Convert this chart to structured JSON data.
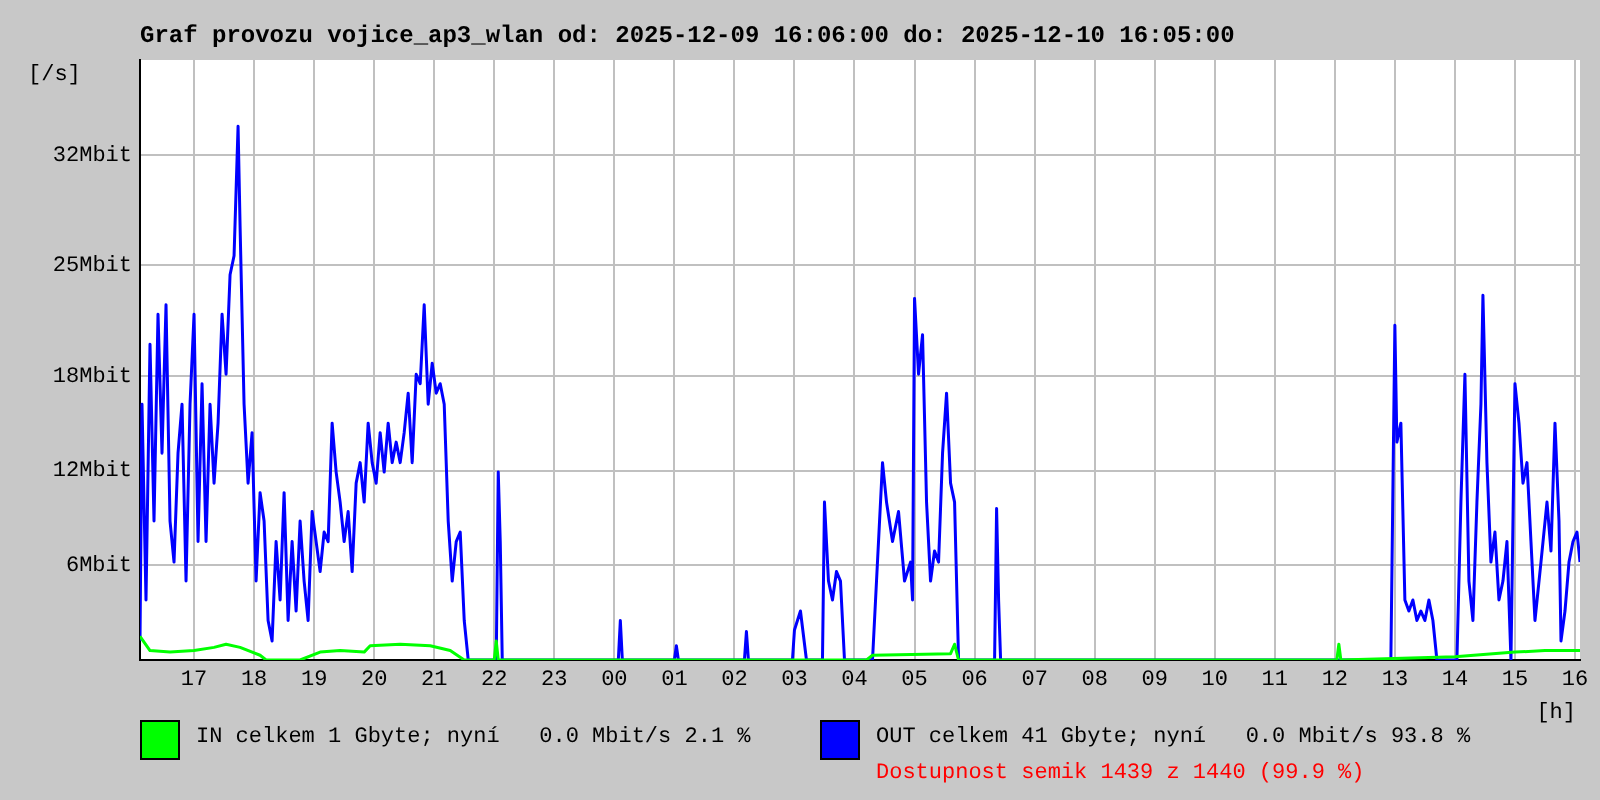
{
  "chart_data": {
    "type": "line",
    "title": "Graf provozu vojice_ap3_wlan od: 2025-12-09 16:06:00 do: 2025-12-10 16:05:00",
    "xlabel": "[h]",
    "ylabel": "[/s]",
    "xlim": [
      "2025-12-09T16:06",
      "2025-12-10T16:05"
    ],
    "xticks": [
      {
        "value": "2025-12-09T17:00",
        "label": "17"
      },
      {
        "value": "2025-12-09T18:00",
        "label": "18"
      },
      {
        "value": "2025-12-09T19:00",
        "label": "19"
      },
      {
        "value": "2025-12-09T20:00",
        "label": "20"
      },
      {
        "value": "2025-12-09T21:00",
        "label": "21"
      },
      {
        "value": "2025-12-09T22:00",
        "label": "22"
      },
      {
        "value": "2025-12-09T23:00",
        "label": "23"
      },
      {
        "value": "2025-12-10T00:00",
        "label": "00"
      },
      {
        "value": "2025-12-10T01:00",
        "label": "01"
      },
      {
        "value": "2025-12-10T02:00",
        "label": "02"
      },
      {
        "value": "2025-12-10T03:00",
        "label": "03"
      },
      {
        "value": "2025-12-10T04:00",
        "label": "04"
      },
      {
        "value": "2025-12-10T05:00",
        "label": "05"
      },
      {
        "value": "2025-12-10T06:00",
        "label": "06"
      },
      {
        "value": "2025-12-10T07:00",
        "label": "07"
      },
      {
        "value": "2025-12-10T08:00",
        "label": "08"
      },
      {
        "value": "2025-12-10T09:00",
        "label": "09"
      },
      {
        "value": "2025-12-10T10:00",
        "label": "10"
      },
      {
        "value": "2025-12-10T11:00",
        "label": "11"
      },
      {
        "value": "2025-12-10T12:00",
        "label": "12"
      },
      {
        "value": "2025-12-10T13:00",
        "label": "13"
      },
      {
        "value": "2025-12-10T14:00",
        "label": "14"
      },
      {
        "value": "2025-12-10T15:00",
        "label": "15"
      },
      {
        "value": "2025-12-10T16:00",
        "label": "16"
      }
    ],
    "ylim": [
      0,
      38
    ],
    "yticks": [
      {
        "value": 6,
        "label": "6Mbit"
      },
      {
        "value": 12,
        "label": "12Mbit"
      },
      {
        "value": 18,
        "label": "18Mbit"
      },
      {
        "value": 25,
        "label": "25Mbit"
      },
      {
        "value": 32,
        "label": "32Mbit"
      }
    ],
    "grid": true,
    "legend": "bottom",
    "series": [
      {
        "name": "IN celkem 1 Gbyte; nyní   0.0 Mbit/s 2.1 %",
        "color": "#00ff00",
        "x": [
          "2025-12-09T16:06",
          "2025-12-09T16:16",
          "2025-12-09T16:36",
          "2025-12-09T17:00",
          "2025-12-09T17:20",
          "2025-12-09T17:32",
          "2025-12-09T17:46",
          "2025-12-09T18:06",
          "2025-12-09T18:12",
          "2025-12-09T18:46",
          "2025-12-09T19:06",
          "2025-12-09T19:26",
          "2025-12-09T19:50",
          "2025-12-09T19:56",
          "2025-12-09T20:26",
          "2025-12-09T20:56",
          "2025-12-09T21:16",
          "2025-12-09T21:30",
          "2025-12-09T22:00",
          "2025-12-09T22:02",
          "2025-12-09T22:04",
          "2025-12-10T04:12",
          "2025-12-10T04:18",
          "2025-12-10T05:36",
          "2025-12-10T05:40",
          "2025-12-10T05:44",
          "2025-12-10T12:02",
          "2025-12-10T12:04",
          "2025-12-10T12:06",
          "2025-12-10T14:00",
          "2025-12-10T15:00",
          "2025-12-10T15:30",
          "2025-12-10T16:05"
        ],
        "values": [
          1.5,
          0.6,
          0.5,
          0.6,
          0.8,
          1,
          0.8,
          0.3,
          0,
          0,
          0.5,
          0.6,
          0.5,
          0.9,
          1,
          0.9,
          0.6,
          0,
          0,
          1.2,
          0,
          0,
          0.3,
          0.4,
          1,
          0,
          0,
          1,
          0,
          0.2,
          0.5,
          0.6,
          0.6
        ]
      },
      {
        "name": "OUT celkem 41 Gbyte; nyní   0.0 Mbit/s 93.8 %",
        "color": "#0000ff",
        "x": [
          "2025-12-09T16:06",
          "2025-12-09T16:08",
          "2025-12-09T16:12",
          "2025-12-09T16:16",
          "2025-12-09T16:20",
          "2025-12-09T16:24",
          "2025-12-09T16:28",
          "2025-12-09T16:32",
          "2025-12-09T16:36",
          "2025-12-09T16:40",
          "2025-12-09T16:44",
          "2025-12-09T16:48",
          "2025-12-09T16:52",
          "2025-12-09T16:56",
          "2025-12-09T17:00",
          "2025-12-09T17:04",
          "2025-12-09T17:08",
          "2025-12-09T17:12",
          "2025-12-09T17:16",
          "2025-12-09T17:20",
          "2025-12-09T17:24",
          "2025-12-09T17:28",
          "2025-12-09T17:32",
          "2025-12-09T17:36",
          "2025-12-09T17:40",
          "2025-12-09T17:44",
          "2025-12-09T17:46",
          "2025-12-09T17:50",
          "2025-12-09T17:54",
          "2025-12-09T17:58",
          "2025-12-09T18:02",
          "2025-12-09T18:06",
          "2025-12-09T18:10",
          "2025-12-09T18:14",
          "2025-12-09T18:18",
          "2025-12-09T18:22",
          "2025-12-09T18:26",
          "2025-12-09T18:30",
          "2025-12-09T18:34",
          "2025-12-09T18:38",
          "2025-12-09T18:42",
          "2025-12-09T18:46",
          "2025-12-09T18:50",
          "2025-12-09T18:54",
          "2025-12-09T18:58",
          "2025-12-09T19:02",
          "2025-12-09T19:06",
          "2025-12-09T19:10",
          "2025-12-09T19:14",
          "2025-12-09T19:18",
          "2025-12-09T19:22",
          "2025-12-09T19:26",
          "2025-12-09T19:30",
          "2025-12-09T19:34",
          "2025-12-09T19:38",
          "2025-12-09T19:42",
          "2025-12-09T19:46",
          "2025-12-09T19:50",
          "2025-12-09T19:54",
          "2025-12-09T19:58",
          "2025-12-09T20:02",
          "2025-12-09T20:06",
          "2025-12-09T20:10",
          "2025-12-09T20:14",
          "2025-12-09T20:18",
          "2025-12-09T20:22",
          "2025-12-09T20:26",
          "2025-12-09T20:30",
          "2025-12-09T20:34",
          "2025-12-09T20:38",
          "2025-12-09T20:42",
          "2025-12-09T20:46",
          "2025-12-09T20:50",
          "2025-12-09T20:54",
          "2025-12-09T20:58",
          "2025-12-09T21:02",
          "2025-12-09T21:06",
          "2025-12-09T21:10",
          "2025-12-09T21:14",
          "2025-12-09T21:18",
          "2025-12-09T21:22",
          "2025-12-09T21:26",
          "2025-12-09T21:30",
          "2025-12-09T21:34",
          "2025-12-09T22:02",
          "2025-12-09T22:04",
          "2025-12-09T22:06",
          "2025-12-09T22:08",
          "2025-12-10T00:04",
          "2025-12-10T00:06",
          "2025-12-10T00:08",
          "2025-12-10T01:00",
          "2025-12-10T01:02",
          "2025-12-10T01:04",
          "2025-12-10T02:10",
          "2025-12-10T02:12",
          "2025-12-10T02:14",
          "2025-12-10T02:58",
          "2025-12-10T03:00",
          "2025-12-10T03:06",
          "2025-12-10T03:12",
          "2025-12-10T03:28",
          "2025-12-10T03:30",
          "2025-12-10T03:34",
          "2025-12-10T03:38",
          "2025-12-10T03:42",
          "2025-12-10T03:46",
          "2025-12-10T03:50",
          "2025-12-10T04:18",
          "2025-12-10T04:28",
          "2025-12-10T04:32",
          "2025-12-10T04:38",
          "2025-12-10T04:44",
          "2025-12-10T04:50",
          "2025-12-10T04:56",
          "2025-12-10T04:58",
          "2025-12-10T05:00",
          "2025-12-10T05:04",
          "2025-12-10T05:08",
          "2025-12-10T05:12",
          "2025-12-10T05:16",
          "2025-12-10T05:20",
          "2025-12-10T05:24",
          "2025-12-10T05:28",
          "2025-12-10T05:32",
          "2025-12-10T05:36",
          "2025-12-10T05:40",
          "2025-12-10T05:44",
          "2025-12-10T06:20",
          "2025-12-10T06:22",
          "2025-12-10T06:24",
          "2025-12-10T06:26",
          "2025-12-10T12:56",
          "2025-12-10T13:00",
          "2025-12-10T13:02",
          "2025-12-10T13:06",
          "2025-12-10T13:10",
          "2025-12-10T13:14",
          "2025-12-10T13:18",
          "2025-12-10T13:22",
          "2025-12-10T13:26",
          "2025-12-10T13:30",
          "2025-12-10T13:34",
          "2025-12-10T13:38",
          "2025-12-10T13:42",
          "2025-12-10T14:02",
          "2025-12-10T14:06",
          "2025-12-10T14:10",
          "2025-12-10T14:14",
          "2025-12-10T14:18",
          "2025-12-10T14:22",
          "2025-12-10T14:26",
          "2025-12-10T14:28",
          "2025-12-10T14:32",
          "2025-12-10T14:36",
          "2025-12-10T14:40",
          "2025-12-10T14:44",
          "2025-12-10T14:48",
          "2025-12-10T14:52",
          "2025-12-10T14:56",
          "2025-12-10T15:00",
          "2025-12-10T15:04",
          "2025-12-10T15:08",
          "2025-12-10T15:12",
          "2025-12-10T15:16",
          "2025-12-10T15:20",
          "2025-12-10T15:26",
          "2025-12-10T15:32",
          "2025-12-10T15:36",
          "2025-12-10T15:40",
          "2025-12-10T15:44",
          "2025-12-10T15:46",
          "2025-12-10T15:50",
          "2025-12-10T15:54",
          "2025-12-10T15:58",
          "2025-12-10T16:02",
          "2025-12-10T16:05"
        ],
        "values": [
          1.2,
          16.2,
          3.8,
          20,
          8.8,
          21.9,
          13.1,
          22.5,
          8.8,
          6.2,
          13.1,
          16.2,
          5,
          16.2,
          21.9,
          7.5,
          17.5,
          7.5,
          16.2,
          11.2,
          15,
          21.9,
          18.1,
          24.4,
          25.6,
          33.8,
          27.5,
          16.2,
          11.2,
          14.4,
          5,
          10.6,
          8.8,
          2.5,
          1.2,
          7.5,
          3.8,
          10.6,
          2.5,
          7.5,
          3.1,
          8.8,
          5,
          2.5,
          9.4,
          7.5,
          5.6,
          8.1,
          7.5,
          15,
          11.9,
          10,
          7.5,
          9.4,
          5.6,
          11.2,
          12.5,
          10,
          15,
          12.5,
          11.2,
          14.4,
          11.9,
          15,
          12.5,
          13.8,
          12.5,
          14.4,
          16.9,
          12.5,
          18.1,
          17.5,
          22.5,
          16.2,
          18.8,
          16.9,
          17.5,
          16.2,
          8.8,
          5,
          7.5,
          8.1,
          2.5,
          0,
          0,
          11.9,
          7.5,
          0,
          0,
          2.5,
          0,
          0,
          0.9,
          0,
          0,
          1.8,
          0,
          0,
          1.9,
          3.1,
          0,
          0,
          10,
          5,
          3.8,
          5.6,
          5,
          0,
          0,
          12.5,
          10,
          7.5,
          9.4,
          5,
          6.2,
          3.8,
          22.9,
          18.1,
          20.6,
          10,
          5,
          6.9,
          6.2,
          13.1,
          16.9,
          11.2,
          10,
          0,
          0,
          9.6,
          3.8,
          0,
          0,
          21.2,
          13.8,
          15,
          3.8,
          3.1,
          3.8,
          2.5,
          3.1,
          2.5,
          3.8,
          2.5,
          0,
          0,
          10,
          18.1,
          5,
          2.5,
          10,
          16.2,
          23.1,
          12.5,
          6.2,
          8.1,
          3.8,
          5,
          7.5,
          0,
          17.5,
          15,
          11.2,
          12.5,
          7.5,
          2.5,
          6.2,
          10,
          6.9,
          15,
          8.8,
          1.2,
          3.1,
          6.2,
          7.5,
          8.1,
          6.2
        ]
      }
    ],
    "annotations": [
      "Dostupnost semik 1439 z 1440 (99.9 %)"
    ]
  }
}
